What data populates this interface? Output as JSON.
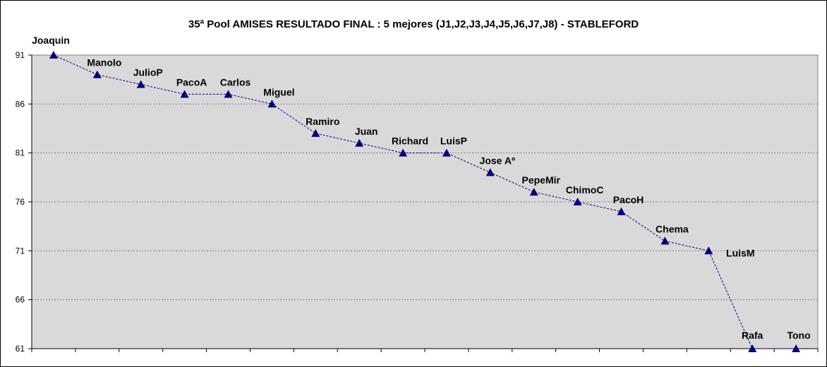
{
  "chart_data": {
    "type": "line",
    "title": "35ª Pool AMISES  RESULTADO FINAL : 5 mejores (J1,J2,J3,J4,J5,J6,J7,J8)  - STABLEFORD",
    "xlabel": "",
    "ylabel": "",
    "ylim": [
      61,
      91
    ],
    "yticks": [
      61,
      66,
      71,
      76,
      81,
      86,
      91
    ],
    "grid": true,
    "legend": "none",
    "categories": [
      "Joaquin",
      "Manolo",
      "JulioP",
      "PacoA",
      "Carlos",
      "Miguel",
      "Ramiro",
      "Juan",
      "Richard",
      "LuisP",
      "Jose Aº",
      "PepeMir",
      "ChimoC",
      "PacoH",
      "Chema",
      "LuisM",
      "Rafa",
      "Tono"
    ],
    "values": [
      91,
      89,
      88,
      87,
      87,
      86,
      83,
      82,
      81,
      81,
      79,
      77,
      76,
      75,
      72,
      71,
      61,
      61
    ],
    "colors": {
      "plot_bg": "#d9d9d9",
      "line": "#000080",
      "marker": "#000080",
      "grid": "#808080"
    }
  }
}
